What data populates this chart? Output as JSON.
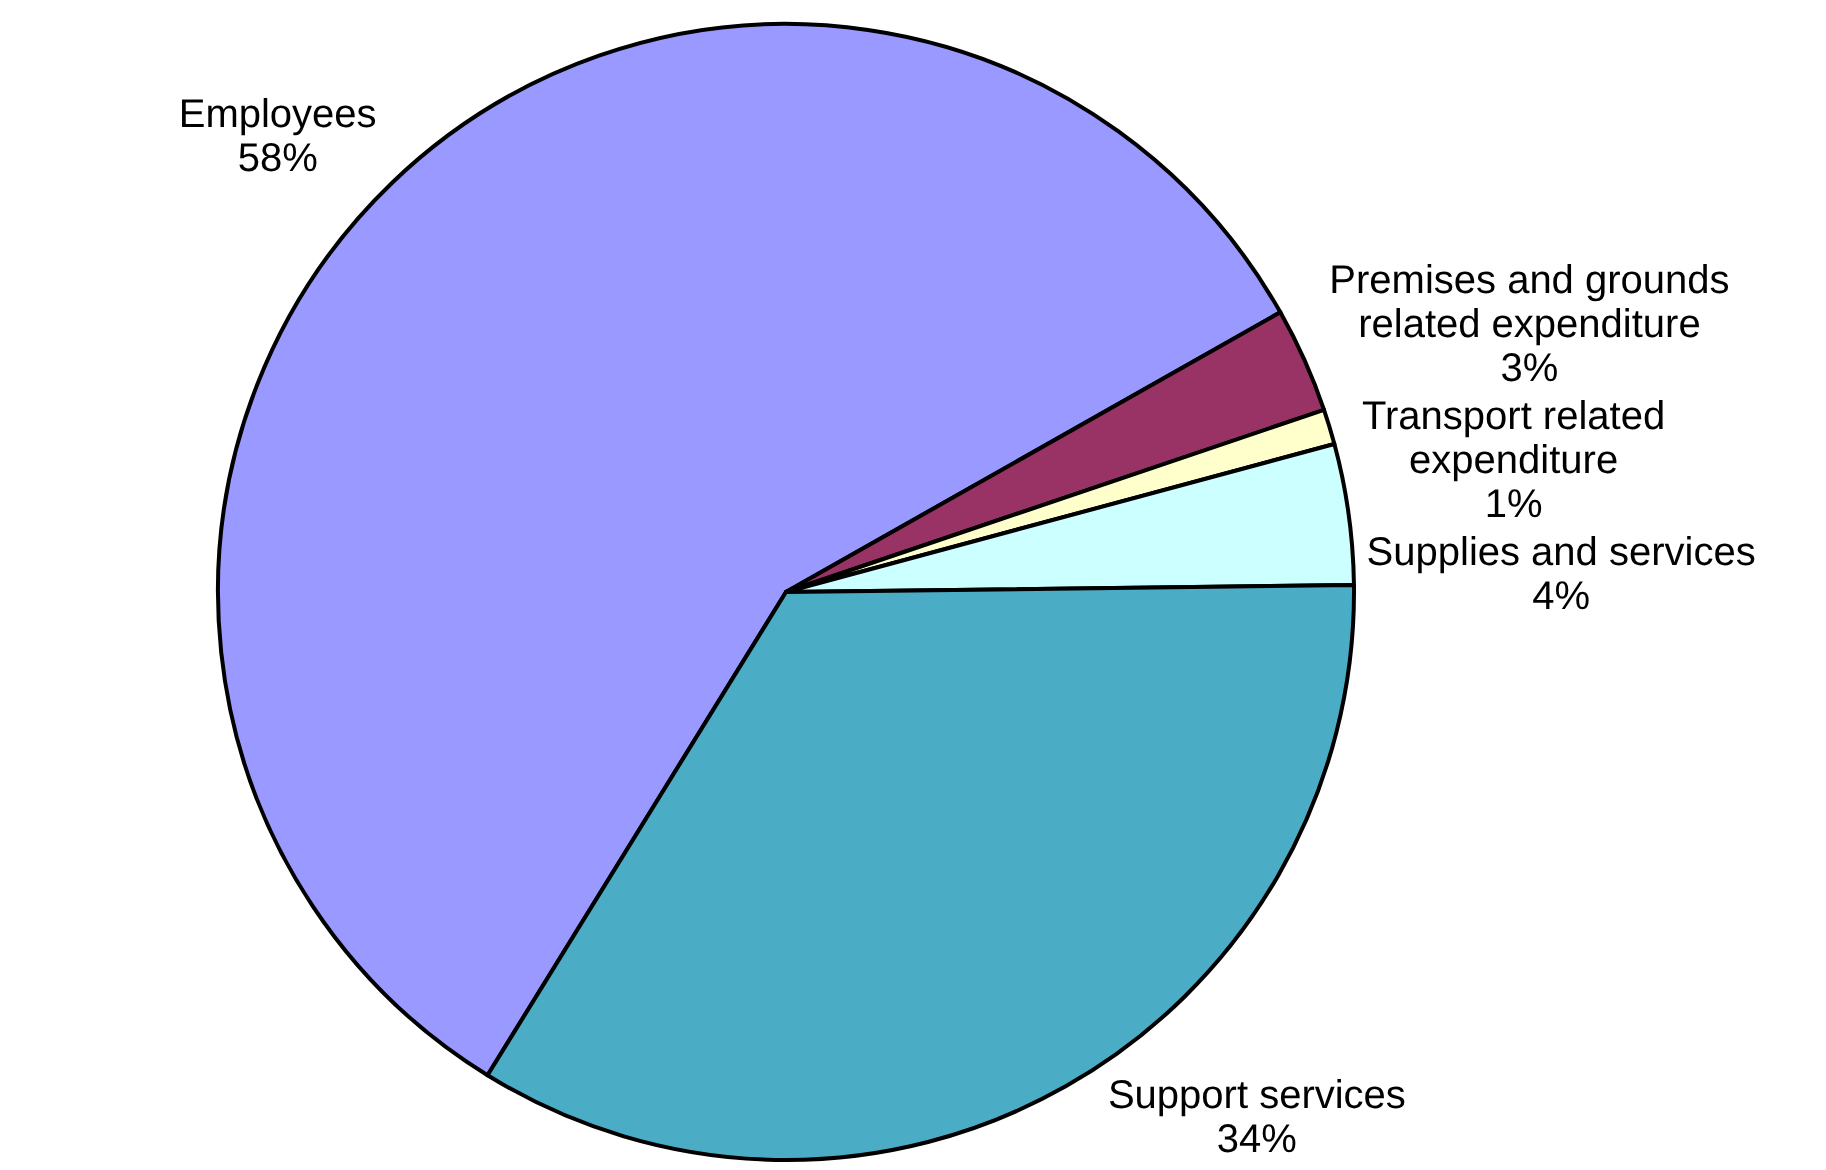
{
  "chart_data": {
    "type": "pie",
    "categories": [
      "Employees",
      "Premises and grounds related expenditure",
      "Transport related expenditure",
      "Supplies and services",
      "Support services"
    ],
    "values": [
      58,
      3,
      1,
      4,
      34
    ],
    "value_labels": [
      "58%",
      "3%",
      "1%",
      "4%",
      "34%"
    ],
    "colors": [
      "#9999ff",
      "#993366",
      "#ffffcc",
      "#ccffff",
      "#4bacc6"
    ]
  }
}
